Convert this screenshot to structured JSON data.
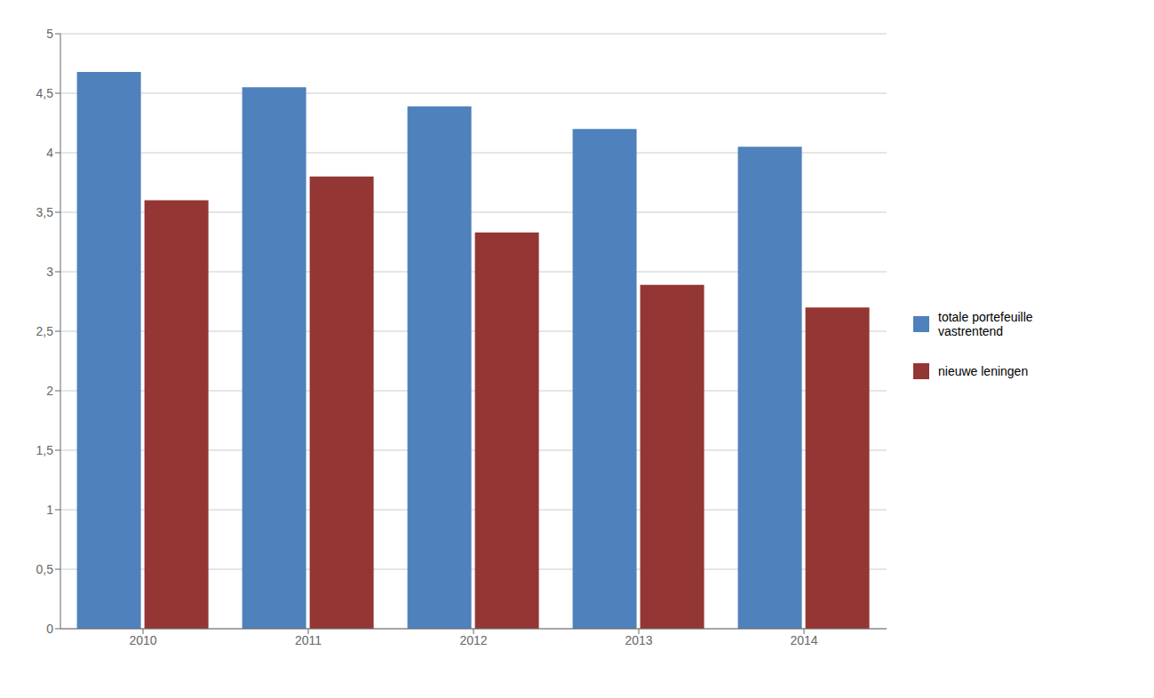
{
  "chart_data": {
    "type": "bar",
    "categories": [
      "2010",
      "2011",
      "2012",
      "2013",
      "2014"
    ],
    "series": [
      {
        "name": "totale portefeuille\nvastrentend",
        "values": [
          4.68,
          4.55,
          4.39,
          4.2,
          4.05
        ],
        "color": "#4F81BD"
      },
      {
        "name": "nieuwe leningen",
        "values": [
          3.6,
          3.8,
          3.33,
          2.89,
          2.7
        ],
        "color": "#943634"
      }
    ],
    "ylim": [
      0,
      5
    ],
    "yticks": [
      0,
      {
        "value": 0.5,
        "label": "0,5"
      },
      1,
      {
        "value": 1.5,
        "label": "1,5"
      },
      2,
      {
        "value": 2.5,
        "label": "2,5"
      },
      3,
      {
        "value": 3.5,
        "label": "3,5"
      },
      4,
      {
        "value": 4.5,
        "label": "4,5"
      },
      5
    ],
    "grid": true,
    "legend": "right"
  }
}
